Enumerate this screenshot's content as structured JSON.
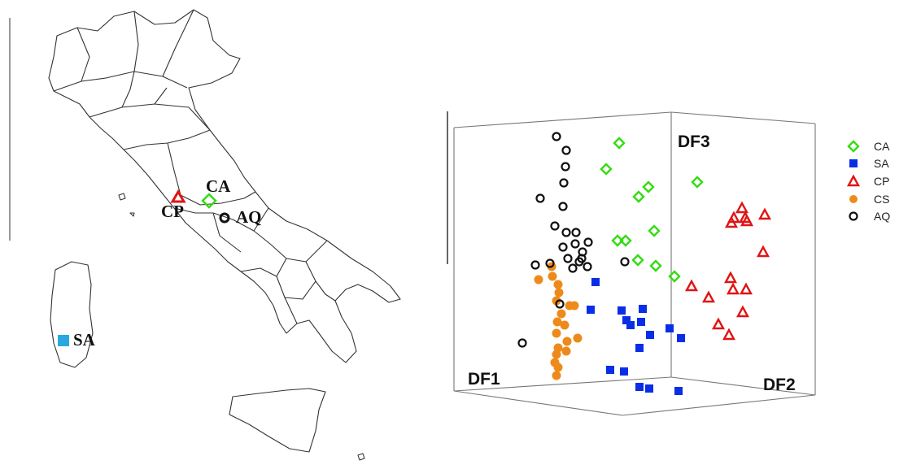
{
  "colors": {
    "CA": "#33dd11",
    "SA": "#0a2ee6",
    "CP": "#e01414",
    "CS": "#ee8a1a",
    "AQ": "#111111",
    "SA_map": "#29a8e0",
    "outline": "#333333"
  },
  "map": {
    "labels": [
      "CA",
      "CP",
      "AQ",
      "SA"
    ]
  },
  "chart_data": {
    "type": "scatter",
    "projection": "3d",
    "axes": {
      "x": "DF1",
      "y": "DF2",
      "z": "DF3"
    },
    "legend_position": "right",
    "series": [
      {
        "name": "CA",
        "marker": "diamond-open",
        "points": [
          [
            761,
            176
          ],
          [
            745,
            208
          ],
          [
            797,
            230
          ],
          [
            785,
            242
          ],
          [
            857,
            224
          ],
          [
            804,
            284
          ],
          [
            769,
            296
          ],
          [
            759,
            296
          ],
          [
            784,
            320
          ],
          [
            806,
            327
          ],
          [
            829,
            340
          ]
        ]
      },
      {
        "name": "SA",
        "marker": "square-filled",
        "points": [
          [
            732,
            347
          ],
          [
            726,
            381
          ],
          [
            764,
            382
          ],
          [
            790,
            380
          ],
          [
            770,
            394
          ],
          [
            775,
            400
          ],
          [
            788,
            396
          ],
          [
            799,
            412
          ],
          [
            823,
            404
          ],
          [
            837,
            416
          ],
          [
            786,
            428
          ],
          [
            750,
            455
          ],
          [
            767,
            457
          ],
          [
            786,
            476
          ],
          [
            798,
            478
          ],
          [
            834,
            481
          ]
        ]
      },
      {
        "name": "CP",
        "marker": "triangle-open",
        "points": [
          [
            912,
            256
          ],
          [
            902,
            268
          ],
          [
            916,
            268
          ],
          [
            940,
            264
          ],
          [
            899,
            274
          ],
          [
            918,
            272
          ],
          [
            938,
            310
          ],
          [
            850,
            352
          ],
          [
            898,
            342
          ],
          [
            871,
            366
          ],
          [
            901,
            356
          ],
          [
            917,
            356
          ],
          [
            913,
            384
          ],
          [
            883,
            399
          ],
          [
            896,
            412
          ]
        ]
      },
      {
        "name": "CS",
        "marker": "circle-filled",
        "points": [
          [
            678,
            328
          ],
          [
            662,
            344
          ],
          [
            679,
            340
          ],
          [
            686,
            350
          ],
          [
            687,
            360
          ],
          [
            684,
            370
          ],
          [
            700,
            376
          ],
          [
            690,
            386
          ],
          [
            706,
            376
          ],
          [
            685,
            396
          ],
          [
            694,
            400
          ],
          [
            684,
            410
          ],
          [
            697,
            420
          ],
          [
            710,
            416
          ],
          [
            686,
            428
          ],
          [
            696,
            432
          ],
          [
            684,
            436
          ],
          [
            682,
            446
          ],
          [
            686,
            452
          ],
          [
            684,
            462
          ]
        ]
      },
      {
        "name": "AQ",
        "marker": "circle-open",
        "points": [
          [
            684,
            168
          ],
          [
            696,
            185
          ],
          [
            695,
            205
          ],
          [
            693,
            225
          ],
          [
            664,
            244
          ],
          [
            692,
            254
          ],
          [
            682,
            278
          ],
          [
            696,
            286
          ],
          [
            708,
            286
          ],
          [
            723,
            298
          ],
          [
            707,
            300
          ],
          [
            692,
            304
          ],
          [
            716,
            310
          ],
          [
            715,
            318
          ],
          [
            712,
            322
          ],
          [
            698,
            318
          ],
          [
            722,
            328
          ],
          [
            658,
            326
          ],
          [
            704,
            330
          ],
          [
            676,
            324
          ],
          [
            768,
            322
          ],
          [
            642,
            422
          ],
          [
            688,
            374
          ]
        ]
      }
    ]
  }
}
